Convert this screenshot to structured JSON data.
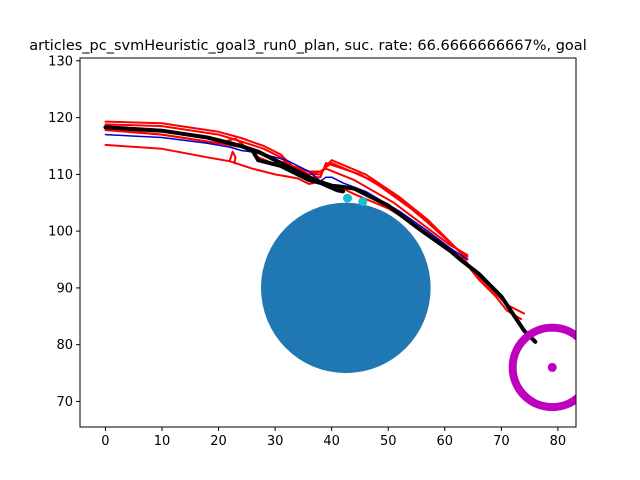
{
  "chart_data": {
    "type": "line",
    "title": "articles_pc_svmHeuristic_goal3_run0_plan, suc. rate: 66.6666666667%, goal",
    "xlabel": "",
    "ylabel": "",
    "xlim": [
      -4.5,
      83.2
    ],
    "ylim": [
      65.5,
      130.5
    ],
    "xticks": [
      0,
      10,
      20,
      30,
      40,
      50,
      60,
      70,
      80
    ],
    "yticks": [
      70,
      80,
      90,
      100,
      110,
      120,
      130
    ],
    "grid": false,
    "series": [
      {
        "color": "#ff0000",
        "width": 2,
        "points": [
          [
            0,
            119.3
          ],
          [
            10,
            119
          ],
          [
            20,
            117.5
          ],
          [
            24,
            116.4
          ],
          [
            28,
            115
          ],
          [
            31,
            113.5
          ],
          [
            33,
            111.5
          ],
          [
            36,
            110
          ],
          [
            38,
            110
          ],
          [
            39,
            111.5
          ],
          [
            40,
            112.5
          ],
          [
            46,
            110
          ],
          [
            52,
            106
          ],
          [
            57,
            102
          ],
          [
            61,
            98
          ],
          [
            64,
            95
          ]
        ]
      },
      {
        "color": "#ff0000",
        "width": 2,
        "points": [
          [
            0,
            118.8
          ],
          [
            10,
            118.5
          ],
          [
            20,
            117
          ],
          [
            24,
            115.8
          ],
          [
            28,
            114.5
          ],
          [
            31,
            113
          ],
          [
            33,
            111
          ],
          [
            36,
            109.5
          ],
          [
            38,
            109.5
          ],
          [
            39,
            112
          ],
          [
            45,
            110
          ],
          [
            51,
            106.5
          ],
          [
            57,
            101.5
          ],
          [
            62,
            97
          ],
          [
            64,
            95.5
          ]
        ]
      },
      {
        "color": "#ff0000",
        "width": 2,
        "points": [
          [
            0,
            118
          ],
          [
            10,
            117
          ],
          [
            20,
            115.5
          ],
          [
            24,
            114.8
          ],
          [
            29,
            113
          ],
          [
            33,
            111.5
          ],
          [
            36,
            110.5
          ],
          [
            38,
            110.5
          ],
          [
            39,
            111
          ],
          [
            44,
            109
          ],
          [
            51,
            105
          ],
          [
            57,
            100.5
          ],
          [
            61,
            97.5
          ],
          [
            64,
            95.8
          ]
        ]
      },
      {
        "color": "#ff0000",
        "width": 2,
        "points": [
          [
            0,
            115.2
          ],
          [
            10,
            114.5
          ],
          [
            18,
            113
          ],
          [
            22,
            112.3
          ],
          [
            26,
            111
          ],
          [
            30,
            110
          ],
          [
            34,
            109.3
          ],
          [
            36,
            108.3
          ],
          [
            38,
            108.8
          ],
          [
            40,
            108
          ],
          [
            42,
            107.5
          ],
          [
            44,
            106.5
          ],
          [
            50,
            104
          ],
          [
            55,
            101
          ],
          [
            60,
            97.5
          ],
          [
            63,
            95.2
          ]
        ]
      },
      {
        "color": "#ff0000",
        "width": 2,
        "points": [
          [
            0,
            117.8
          ],
          [
            10,
            117
          ],
          [
            20,
            115.5
          ],
          [
            23,
            116.3
          ],
          [
            27,
            113
          ],
          [
            32,
            111
          ],
          [
            36,
            110
          ],
          [
            38,
            110.5
          ],
          [
            40,
            112
          ],
          [
            47,
            109
          ],
          [
            54,
            104
          ],
          [
            59,
            100
          ],
          [
            63,
            96
          ]
        ]
      },
      {
        "color": "#ff0000",
        "width": 2,
        "points": [
          [
            22,
            112.5
          ],
          [
            22.5,
            114
          ],
          [
            23,
            113
          ],
          [
            22.8,
            112
          ]
        ]
      },
      {
        "color": "#ff0000",
        "width": 2,
        "points": [
          [
            63,
            95.5
          ],
          [
            66,
            92
          ],
          [
            69,
            89
          ],
          [
            71,
            87
          ],
          [
            74,
            85.5
          ]
        ]
      },
      {
        "color": "#ff0000",
        "width": 2,
        "points": [
          [
            63,
            95.2
          ],
          [
            66,
            91.5
          ],
          [
            69,
            88.5
          ],
          [
            71,
            86
          ],
          [
            73.5,
            84.5
          ]
        ]
      },
      {
        "color": "#0000cd",
        "width": 1.5,
        "points": [
          [
            0,
            117
          ],
          [
            10,
            116.5
          ],
          [
            18,
            115.5
          ],
          [
            22,
            114.8
          ],
          [
            24,
            114.2
          ],
          [
            27,
            113.8
          ],
          [
            32,
            112.5
          ],
          [
            36,
            110.5
          ],
          [
            38,
            108.8
          ],
          [
            39,
            109.5
          ],
          [
            40,
            109.5
          ],
          [
            42,
            108.5
          ],
          [
            46,
            107
          ],
          [
            52,
            103.5
          ],
          [
            57,
            100
          ],
          [
            61,
            97
          ],
          [
            64,
            95
          ]
        ]
      },
      {
        "color": "#000000",
        "width": 4,
        "points": [
          [
            0,
            118.3
          ],
          [
            10,
            117.7
          ],
          [
            18,
            116.5
          ],
          [
            24,
            115
          ],
          [
            27,
            114
          ],
          [
            29,
            113
          ],
          [
            33,
            111
          ],
          [
            37,
            109
          ],
          [
            40,
            108
          ],
          [
            42,
            107.8
          ],
          [
            44,
            107.5
          ],
          [
            50,
            104.5
          ],
          [
            56,
            100
          ],
          [
            61,
            96.5
          ],
          [
            63,
            94.8
          ],
          [
            66,
            92.5
          ],
          [
            68,
            90.5
          ],
          [
            70,
            88.5
          ],
          [
            72,
            85.5
          ],
          [
            74,
            82.5
          ],
          [
            76,
            80.5
          ]
        ]
      },
      {
        "color": "#000000",
        "width": 4,
        "points": [
          [
            24,
            115
          ],
          [
            26,
            114.2
          ],
          [
            27,
            112.5
          ],
          [
            31,
            111.5
          ],
          [
            36,
            109
          ],
          [
            38,
            108.5
          ],
          [
            41,
            107.2
          ],
          [
            42,
            107
          ]
        ]
      }
    ],
    "obstacle": {
      "center": [
        42.5,
        90
      ],
      "radius": 15,
      "color": "#1f77b4"
    },
    "points": [
      {
        "xy": [
          42.8,
          105.8
        ],
        "color": "#17becf"
      },
      {
        "xy": [
          45.5,
          105.2
        ],
        "color": "#17becf"
      }
    ],
    "goal": {
      "center": [
        79,
        76
      ],
      "radius": 7,
      "ring_width": 8,
      "color": "#bf00bf"
    }
  }
}
